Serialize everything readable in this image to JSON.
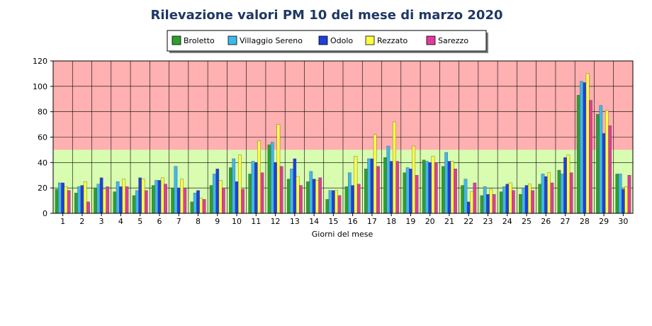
{
  "chart_data": {
    "type": "bar",
    "title": "Rilevazione valori PM 10 del mese di marzo 2020",
    "xlabel": "Giorni del mese",
    "ylabel": "",
    "ylim": [
      0,
      120
    ],
    "yticks": [
      0,
      20,
      40,
      60,
      80,
      100,
      120
    ],
    "grid": true,
    "legend_position": "top-center",
    "bands": [
      {
        "from": 0,
        "to": 50,
        "color": "#d8fcb0"
      },
      {
        "from": 50,
        "to": 120,
        "color": "#ffb0b0"
      }
    ],
    "categories": [
      "1",
      "2",
      "3",
      "4",
      "5",
      "6",
      "7",
      "8",
      "9",
      "10",
      "11",
      "12",
      "13",
      "14",
      "15",
      "16",
      "17",
      "18",
      "19",
      "20",
      "21",
      "22",
      "23",
      "24",
      "25",
      "26",
      "27",
      "28",
      "29",
      "30"
    ],
    "series": [
      {
        "name": "Broletto",
        "color": "#2ca02c",
        "values": [
          19,
          16,
          20,
          17,
          14,
          22,
          20,
          9,
          22,
          36,
          31,
          54,
          27,
          25,
          11,
          21,
          35,
          44,
          32,
          42,
          37,
          22,
          14,
          17,
          15,
          23,
          34,
          93,
          78,
          31
        ]
      },
      {
        "name": "Villaggio Sereno",
        "color": "#3cb9ee",
        "values": [
          24,
          21,
          23,
          25,
          18,
          26,
          37,
          16,
          31,
          43,
          41,
          56,
          35,
          33,
          18,
          32,
          43,
          53,
          36,
          41,
          48,
          27,
          21,
          21,
          20,
          31,
          31,
          104,
          85,
          31
        ]
      },
      {
        "name": "Odolo",
        "color": "#1f3fd8",
        "values": [
          24,
          22,
          28,
          21,
          28,
          26,
          20,
          18,
          35,
          25,
          40,
          40,
          43,
          27,
          18,
          22,
          43,
          41,
          35,
          40,
          41,
          9,
          15,
          23,
          22,
          29,
          44,
          103,
          63,
          19
        ]
      },
      {
        "name": "Rezzato",
        "color": "#ffff40",
        "values": [
          21,
          25,
          19,
          27,
          27,
          28,
          27,
          12,
          26,
          46,
          57,
          70,
          29,
          26,
          18,
          45,
          62,
          72,
          53,
          45,
          41,
          17,
          19,
          24,
          23,
          32,
          46,
          110,
          81,
          21
        ]
      },
      {
        "name": "Sarezzo",
        "color": "#e23a9c",
        "values": [
          18,
          9,
          21,
          21,
          18,
          23,
          20,
          11,
          20,
          19,
          32,
          37,
          22,
          28,
          14,
          23,
          37,
          41,
          30,
          40,
          35,
          24,
          15,
          18,
          18,
          24,
          32,
          89,
          69,
          30
        ]
      }
    ]
  }
}
